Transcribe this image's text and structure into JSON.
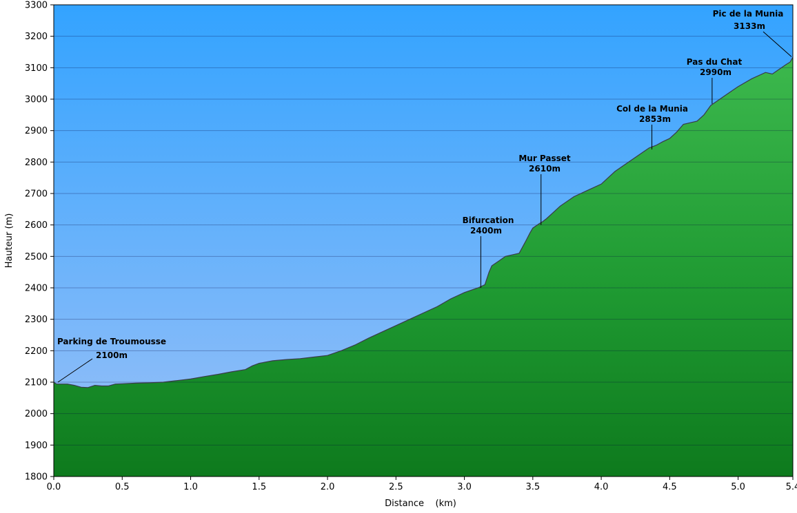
{
  "chart_data": {
    "type": "area",
    "title": "",
    "xlabel": "Distance    (km)",
    "ylabel": "Hauteur (m)",
    "xlim": [
      0,
      5.4
    ],
    "ylim": [
      1800,
      3300
    ],
    "x_ticks": [
      "0.0",
      "0.5",
      "1.0",
      "1.5",
      "2.0",
      "2.5",
      "3.0",
      "3.5",
      "4.0",
      "4.5",
      "5.0",
      "5.4"
    ],
    "x_tick_values": [
      0,
      0.5,
      1.0,
      1.5,
      2.0,
      2.5,
      3.0,
      3.5,
      4.0,
      4.5,
      5.0,
      5.4
    ],
    "y_ticks": [
      1800,
      1900,
      2000,
      2100,
      2200,
      2300,
      2400,
      2500,
      2600,
      2700,
      2800,
      2900,
      3000,
      3100,
      3200,
      3300
    ],
    "grid": true,
    "colors": {
      "sky_top": "#33a3ff",
      "sky_bottom": "#9cc1f7",
      "fill_top": "#3cb84d",
      "fill_mid": "#1f9a32",
      "fill_bottom": "#0e7a1d",
      "profile_line": "#3a3a4a"
    },
    "series": [
      {
        "x": [
          0.0,
          0.02,
          0.1,
          0.15,
          0.2,
          0.25,
          0.3,
          0.35,
          0.4,
          0.45,
          0.5,
          0.6,
          0.7,
          0.8,
          0.9,
          1.0,
          1.1,
          1.2,
          1.3,
          1.4,
          1.45,
          1.5,
          1.6,
          1.7,
          1.8,
          1.9,
          2.0,
          2.1,
          2.2,
          2.3,
          2.4,
          2.5,
          2.6,
          2.7,
          2.8,
          2.9,
          3.0,
          3.1,
          3.15,
          3.18,
          3.2,
          3.25,
          3.3,
          3.35,
          3.4,
          3.45,
          3.48,
          3.5,
          3.55,
          3.57,
          3.6,
          3.65,
          3.7,
          3.8,
          3.9,
          4.0,
          4.1,
          4.2,
          4.3,
          4.35,
          4.4,
          4.45,
          4.5,
          4.55,
          4.6,
          4.7,
          4.75,
          4.8,
          4.85,
          4.9,
          5.0,
          5.1,
          5.2,
          5.25,
          5.3,
          5.35,
          5.38,
          5.4
        ],
        "y": [
          2100,
          2094,
          2094,
          2090,
          2084,
          2083,
          2090,
          2088,
          2088,
          2094,
          2095,
          2097,
          2098,
          2100,
          2105,
          2110,
          2118,
          2125,
          2133,
          2140,
          2152,
          2160,
          2168,
          2172,
          2175,
          2180,
          2185,
          2200,
          2218,
          2240,
          2260,
          2280,
          2300,
          2320,
          2340,
          2365,
          2385,
          2400,
          2410,
          2450,
          2470,
          2485,
          2500,
          2505,
          2510,
          2550,
          2575,
          2590,
          2605,
          2610,
          2620,
          2640,
          2660,
          2690,
          2710,
          2730,
          2770,
          2800,
          2830,
          2845,
          2853,
          2865,
          2875,
          2895,
          2920,
          2930,
          2950,
          2980,
          2995,
          3010,
          3040,
          3065,
          3085,
          3080,
          3095,
          3110,
          3118,
          3133
        ]
      }
    ],
    "annotations": [
      {
        "name": "Parking de Troumousse",
        "label_value": "2100m",
        "x": 0.02,
        "y": 2100
      },
      {
        "name": "Bifurcation",
        "label_value": "2400m",
        "x": 3.12,
        "y": 2400
      },
      {
        "name": "Mur Passet",
        "label_value": "2610m",
        "x": 3.56,
        "y": 2600
      },
      {
        "name": "Col de la Munia",
        "label_value": "2853m",
        "x": 4.37,
        "y": 2840
      },
      {
        "name": "Pas du Chat",
        "label_value": "2990m",
        "x": 4.81,
        "y": 2985
      },
      {
        "name": "Pic de la Munia",
        "label_value": "3133m",
        "x": 5.39,
        "y": 3135
      }
    ]
  }
}
